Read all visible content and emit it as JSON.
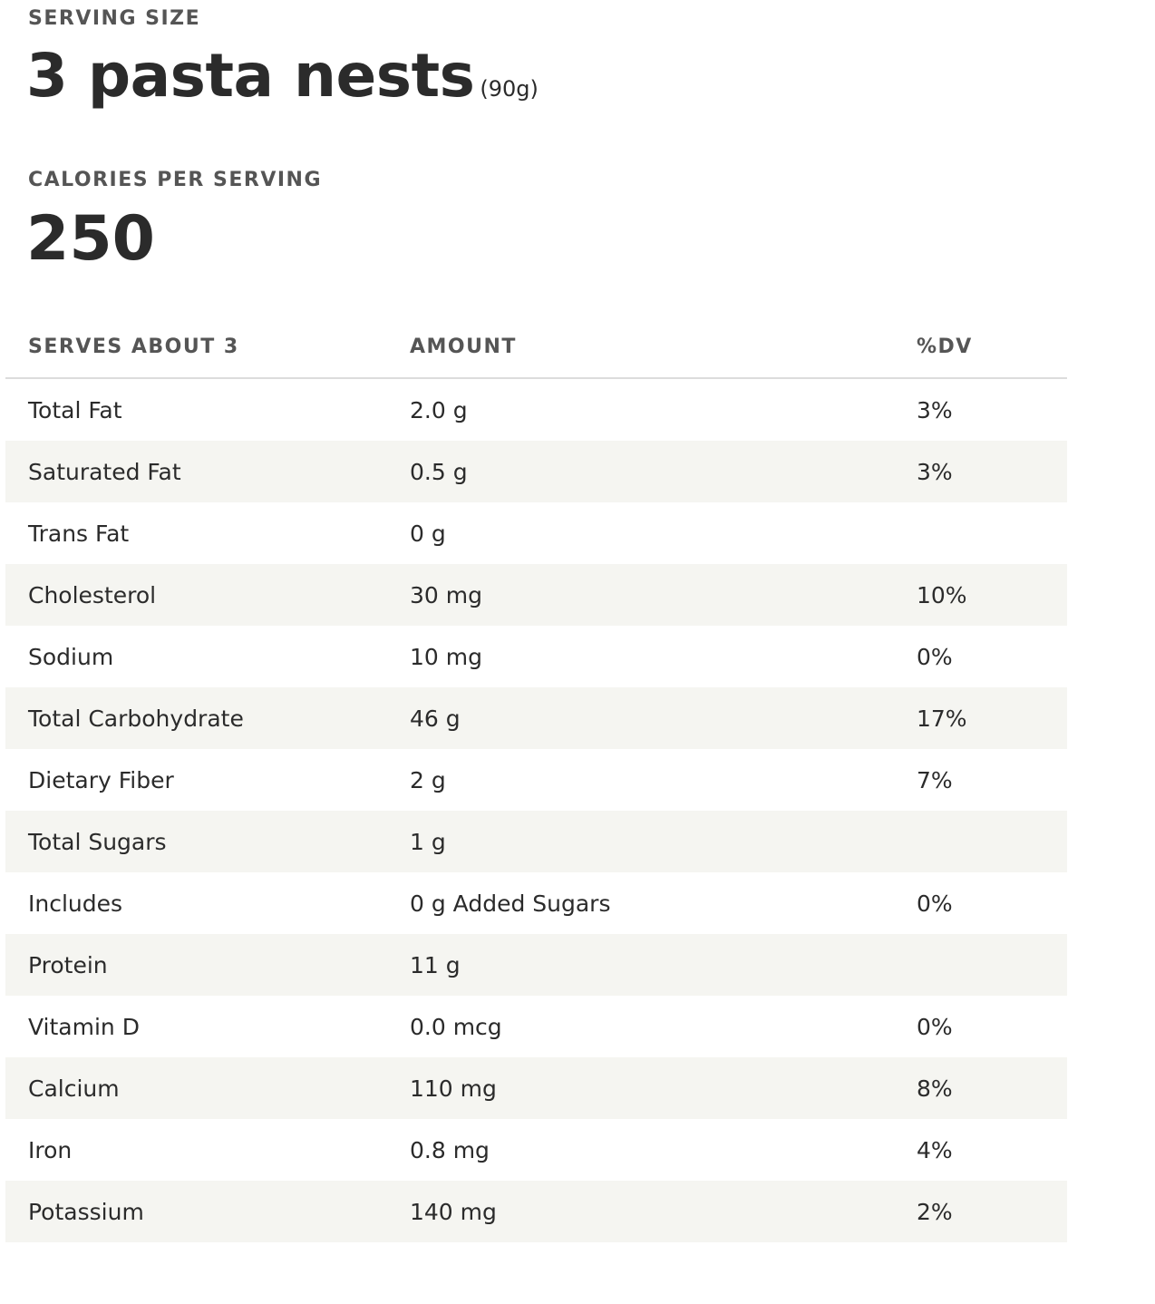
{
  "serving": {
    "label": "SERVING SIZE",
    "amount": "3 pasta nests",
    "weight": "(90g)"
  },
  "calories": {
    "label": "CALORIES PER SERVING",
    "value": "250"
  },
  "table": {
    "headers": {
      "serves": "SERVES ABOUT 3",
      "amount": "AMOUNT",
      "dv": "%DV"
    },
    "rows": [
      {
        "name": "Total Fat",
        "amount": "2.0 g",
        "dv": "3%"
      },
      {
        "name": "Saturated Fat",
        "amount": "0.5 g",
        "dv": "3%"
      },
      {
        "name": "Trans Fat",
        "amount": "0 g",
        "dv": ""
      },
      {
        "name": "Cholesterol",
        "amount": "30 mg",
        "dv": "10%"
      },
      {
        "name": "Sodium",
        "amount": "10 mg",
        "dv": "0%"
      },
      {
        "name": "Total Carbohydrate",
        "amount": "46 g",
        "dv": "17%"
      },
      {
        "name": "Dietary Fiber",
        "amount": "2 g",
        "dv": "7%"
      },
      {
        "name": "Total Sugars",
        "amount": "1 g",
        "dv": ""
      },
      {
        "name": "Includes",
        "amount": "0 g Added Sugars",
        "dv": "0%"
      },
      {
        "name": "Protein",
        "amount": "11 g",
        "dv": ""
      },
      {
        "name": "Vitamin D",
        "amount": "0.0 mcg",
        "dv": "0%"
      },
      {
        "name": "Calcium",
        "amount": "110 mg",
        "dv": "8%"
      },
      {
        "name": "Iron",
        "amount": "0.8 mg",
        "dv": "4%"
      },
      {
        "name": "Potassium",
        "amount": "140 mg",
        "dv": "2%"
      }
    ]
  }
}
